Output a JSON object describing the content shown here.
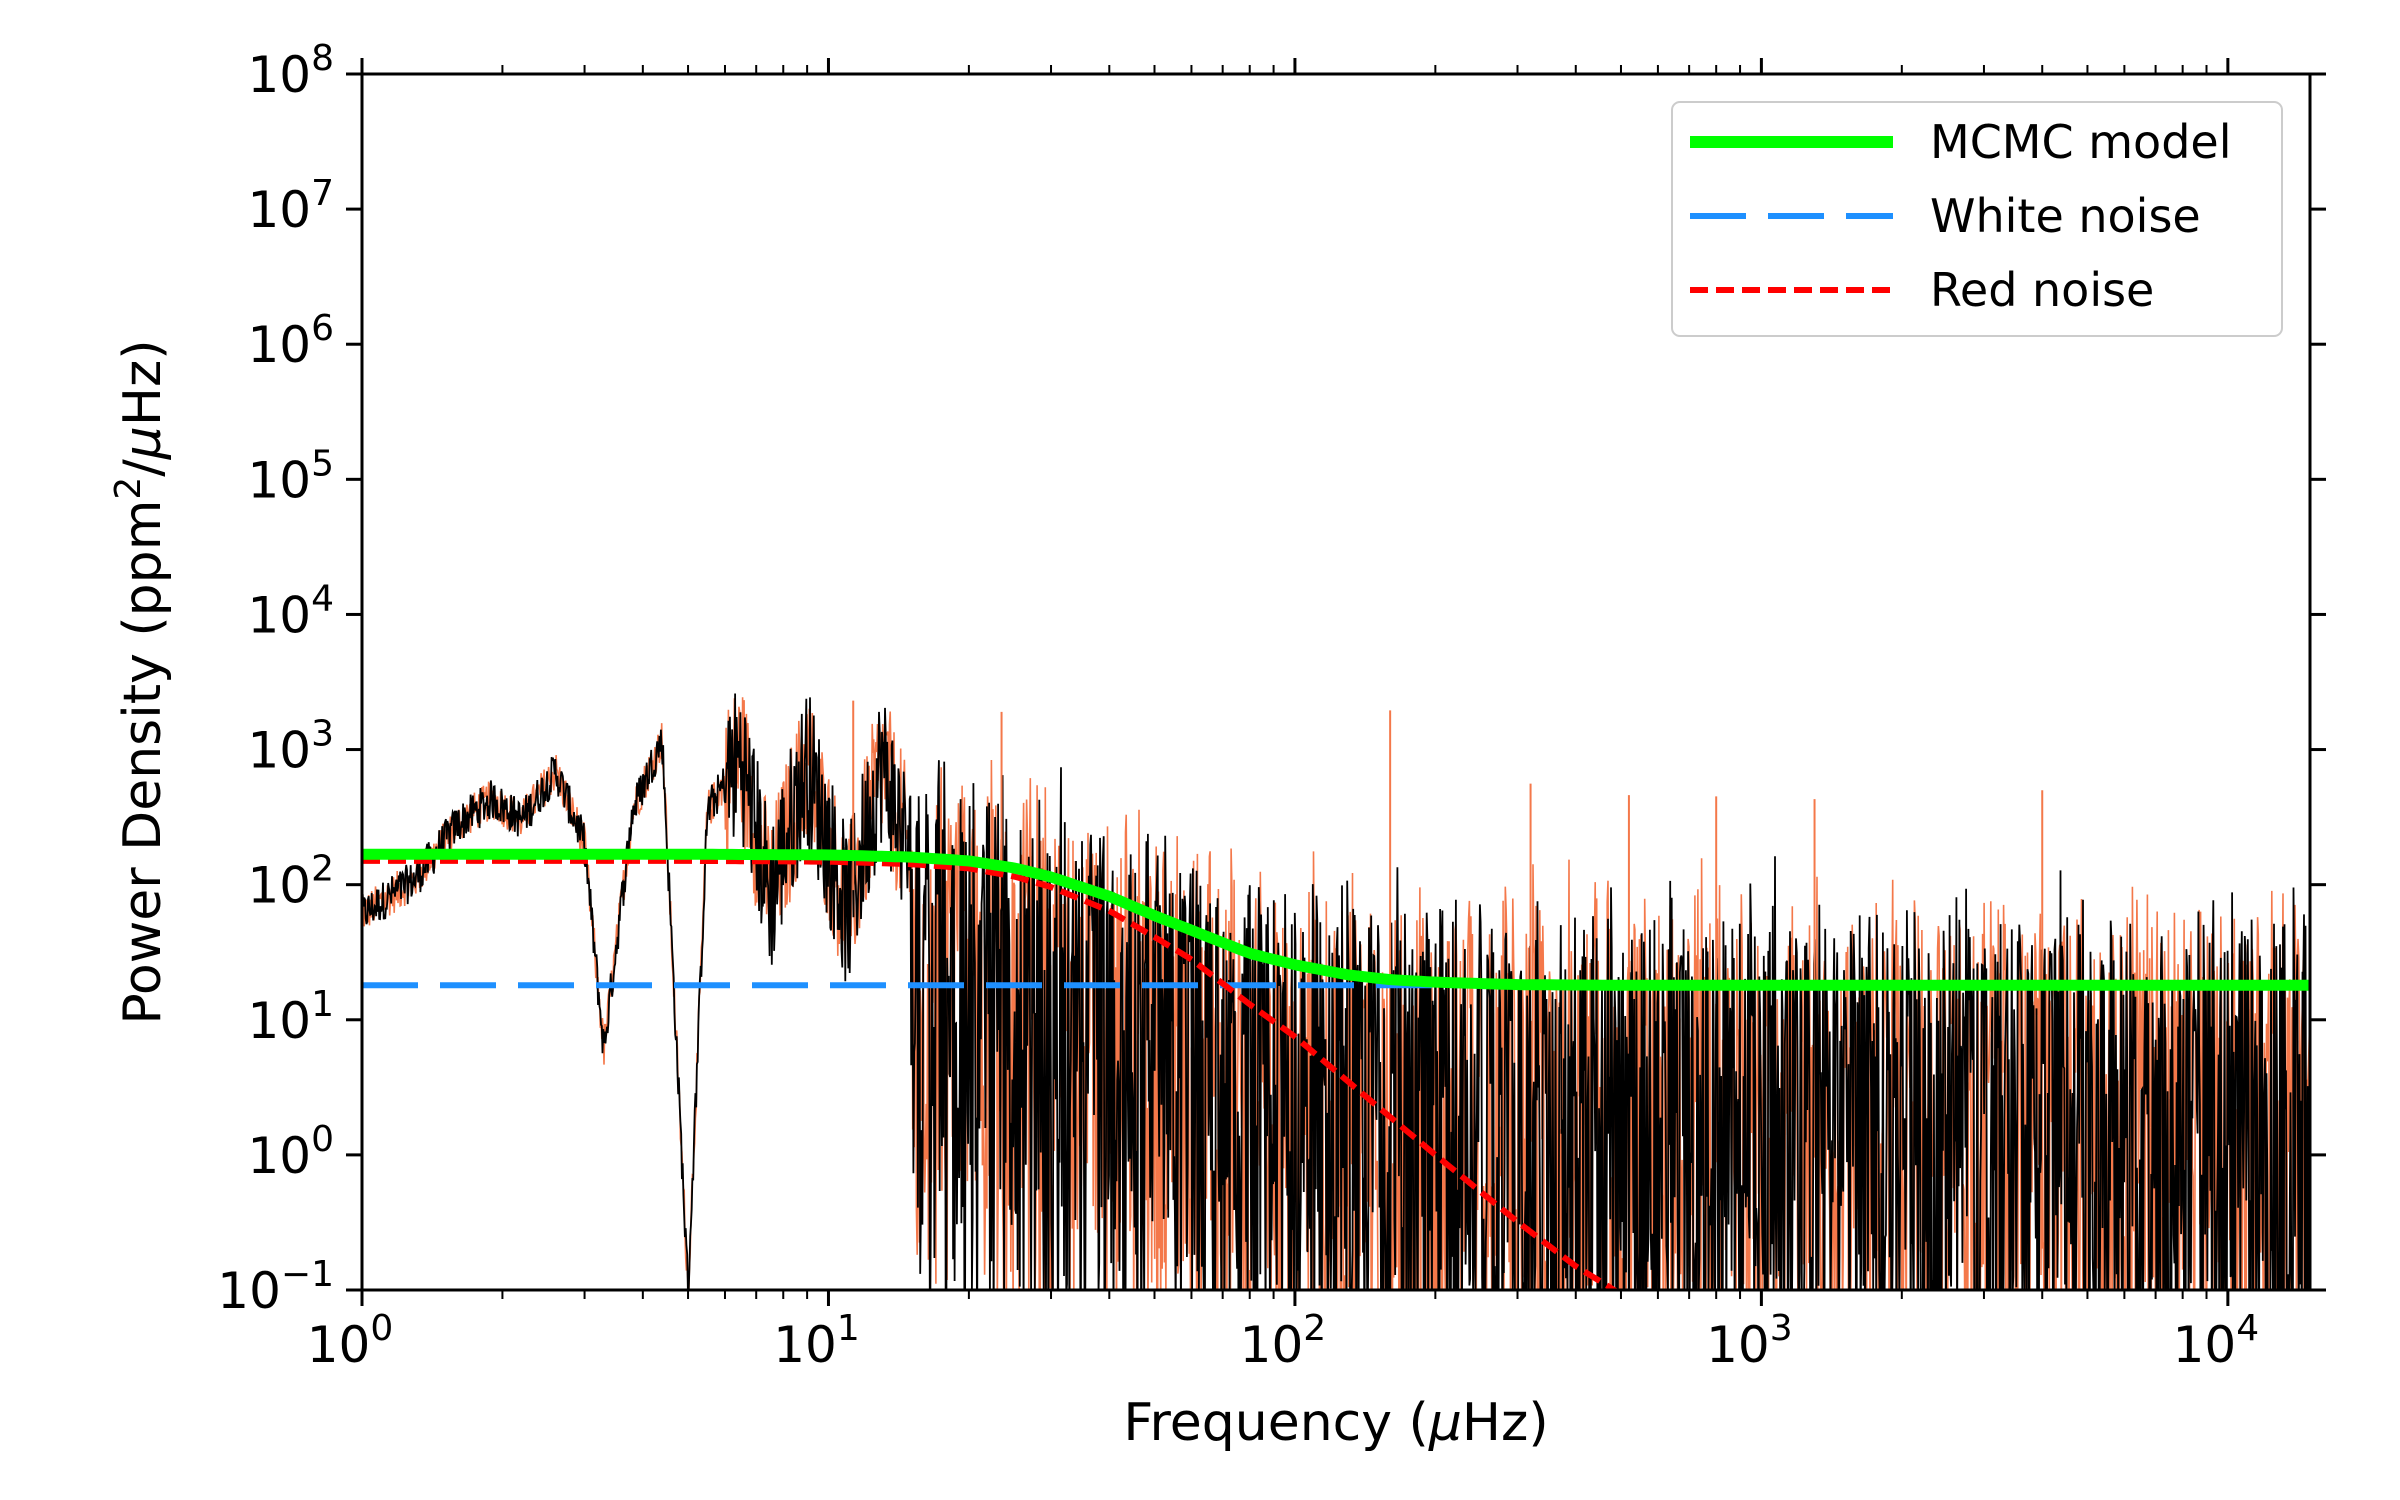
{
  "chart_data": {
    "type": "line",
    "title": "",
    "xlabel": "Frequency (μHz)",
    "ylabel": "Power Density (ppm²/μHz)",
    "xscale": "log",
    "yscale": "log",
    "xlim": [
      1,
      15000
    ],
    "ylim": [
      0.1,
      100000000
    ],
    "grid": false,
    "legend_position": "top-right",
    "x_ticks": [
      {
        "value": 1,
        "base": "10",
        "exp": "0"
      },
      {
        "value": 10,
        "base": "10",
        "exp": "1"
      },
      {
        "value": 100,
        "base": "10",
        "exp": "2"
      },
      {
        "value": 1000,
        "base": "10",
        "exp": "3"
      },
      {
        "value": 10000,
        "base": "10",
        "exp": "4"
      }
    ],
    "y_ticks": [
      {
        "value": 0.1,
        "base": "10",
        "exp": "−1"
      },
      {
        "value": 1,
        "base": "10",
        "exp": "0"
      },
      {
        "value": 10,
        "base": "10",
        "exp": "1"
      },
      {
        "value": 100,
        "base": "10",
        "exp": "2"
      },
      {
        "value": 1000,
        "base": "10",
        "exp": "3"
      },
      {
        "value": 10000,
        "base": "10",
        "exp": "4"
      },
      {
        "value": 100000,
        "base": "10",
        "exp": "5"
      },
      {
        "value": 1000000,
        "base": "10",
        "exp": "6"
      },
      {
        "value": 10000000,
        "base": "10",
        "exp": "7"
      },
      {
        "value": 100000000,
        "base": "10",
        "exp": "8"
      }
    ],
    "series": [
      {
        "name": "MCMC model",
        "color": "#00ff00",
        "style": "solid",
        "x": [
          1,
          5,
          10,
          15,
          20,
          25,
          30,
          40,
          50,
          60,
          80,
          100,
          130,
          160,
          200,
          300,
          500,
          1000,
          5000,
          15000
        ],
        "values": [
          168,
          168,
          166,
          160,
          150,
          133,
          114,
          82,
          59,
          46,
          31,
          25.5,
          21.5,
          19.8,
          19,
          18.2,
          18,
          18,
          18,
          18
        ]
      },
      {
        "name": "White noise",
        "color": "#1e90ff",
        "style": "long-dash",
        "x": [
          1,
          15000
        ],
        "values": [
          18,
          18
        ]
      },
      {
        "name": "Red noise",
        "color": "#ff0000",
        "style": "short-dash",
        "x": [
          1,
          5,
          10,
          15,
          20,
          25,
          30,
          40,
          50,
          60,
          80,
          100,
          150,
          200,
          300,
          400,
          500
        ],
        "values": [
          150,
          150,
          148,
          142,
          132,
          115,
          96,
          64,
          41,
          28,
          13,
          7.5,
          2.3,
          1.0,
          0.32,
          0.15,
          0.093
        ]
      }
    ],
    "spectra": [
      {
        "color": "#f4784a",
        "description_role": "power spectrum (light)"
      },
      {
        "color": "#000000",
        "description_role": "power spectrum (smoothed)"
      }
    ],
    "spectrum_smooth_trend": {
      "x": [
        1,
        1.3,
        1.6,
        1.9,
        2.2,
        2.6,
        3.0,
        3.3,
        3.8,
        4.4,
        5.0,
        5.5,
        6.5,
        7.5,
        9,
        11,
        13,
        15
      ],
      "values": [
        60,
        110,
        280,
        430,
        300,
        700,
        200,
        6,
        350,
        1200,
        0.1,
        350,
        900,
        80,
        800,
        60,
        800,
        150
      ]
    },
    "spectrum_spikes": [
      {
        "x": 11.3,
        "value": 2300
      },
      {
        "x": 23.5,
        "value": 1900
      },
      {
        "x": 160,
        "value": 1950
      },
      {
        "x": 320,
        "value": 560
      },
      {
        "x": 520,
        "value": 460
      },
      {
        "x": 800,
        "value": 450
      },
      {
        "x": 1300,
        "value": 430
      },
      {
        "x": 4000,
        "value": 500
      }
    ]
  }
}
